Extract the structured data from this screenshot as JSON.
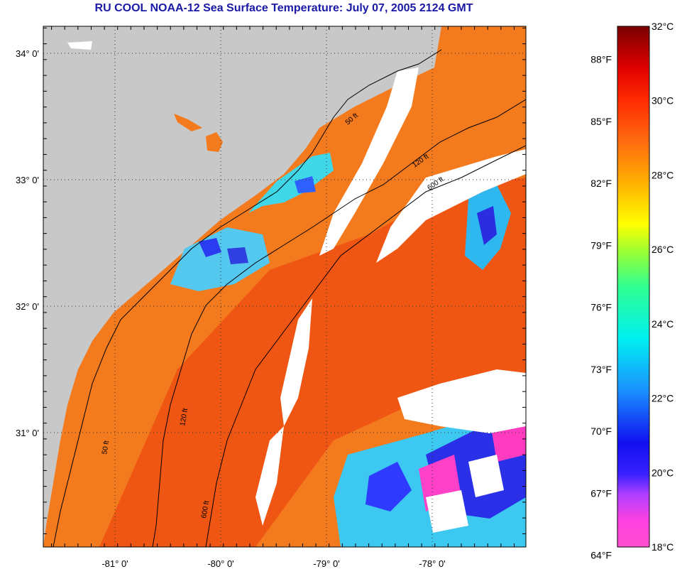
{
  "title": "RU COOL  NOAA-12  Sea Surface Temperature:  July 07, 2005 2124 GMT",
  "map": {
    "latitude_labels": [
      "34° 0'",
      "33° 0'",
      "32° 0'",
      "31° 0'"
    ],
    "longitude_labels": [
      "-81° 0'",
      "-80° 0'",
      "-79° 0'",
      "-78° 0'"
    ],
    "latitudes": [
      34,
      33,
      32,
      31
    ],
    "longitudes": [
      -81,
      -80,
      -79,
      -78
    ],
    "depth_contour_labels": [
      "50 ft",
      "120 ft",
      "600 ft"
    ],
    "colors": {
      "land": "#c8c8c8",
      "cloud": "#ffffff",
      "warm_water": "#f47a1e",
      "border": "#000000"
    }
  },
  "colorbar": {
    "fahrenheit_labels": [
      "88°F",
      "85°F",
      "82°F",
      "79°F",
      "76°F",
      "73°F",
      "70°F",
      "67°F",
      "64°F"
    ],
    "celsius_labels": [
      "32°C",
      "30°C",
      "28°C",
      "26°C",
      "24°C",
      "22°C",
      "20°C",
      "18°C"
    ],
    "fahrenheit_values": [
      88,
      85,
      82,
      79,
      76,
      73,
      70,
      67,
      64
    ],
    "celsius_values": [
      32,
      30,
      28,
      26,
      24,
      22,
      20,
      18
    ],
    "min_c": 18,
    "max_c": 32
  }
}
